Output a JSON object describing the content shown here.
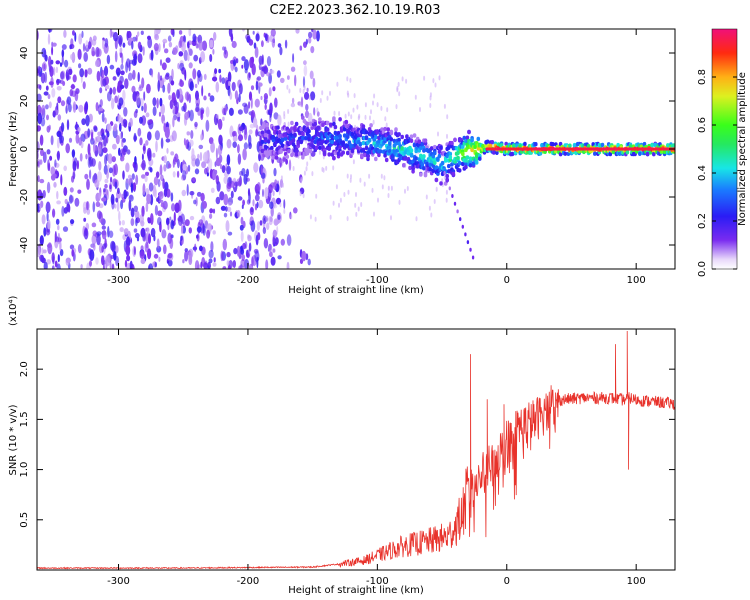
{
  "title": "C2E2.2023.362.10.19.R03",
  "chart_data": [
    {
      "type": "heatmap",
      "name": "spectrogram",
      "xlabel": "Height of straight line (km)",
      "ylabel": "Frequency (Hz)",
      "xlim": [
        -363,
        130
      ],
      "ylim": [
        -50,
        50
      ],
      "xticks": [
        -300,
        -200,
        -100,
        0,
        100
      ],
      "yticks": [
        -40,
        -20,
        0,
        20,
        40
      ],
      "colorbar": {
        "label": "Normalized spectral amplitude",
        "range": [
          0,
          1
        ],
        "ticks": [
          0.0,
          0.2,
          0.4,
          0.6,
          0.8
        ],
        "tick_labels": [
          "0.0",
          "0.2",
          "0.4",
          "0.6",
          "0.8"
        ]
      },
      "ridge": {
        "description_points_x": [
          -190,
          -150,
          -120,
          -100,
          -80,
          -60,
          -50,
          -40,
          -30,
          -20,
          -15,
          0,
          50,
          100,
          130
        ],
        "frequency_hz": [
          3,
          5,
          4,
          2,
          0,
          -4,
          -7,
          -3,
          -1,
          0,
          1,
          0,
          0,
          0,
          0
        ],
        "amplitude": [
          0.2,
          0.25,
          0.35,
          0.4,
          0.45,
          0.45,
          0.4,
          0.55,
          0.75,
          0.85,
          0.9,
          0.95,
          0.95,
          0.95,
          0.95
        ]
      },
      "noise_region_x": [
        -363,
        -175
      ]
    },
    {
      "type": "line",
      "name": "snr",
      "xlabel": "Height of straight line (km)",
      "ylabel": "SNR (10 * v/v)",
      "y_multiplier": "(x10⁴)",
      "xlim": [
        -363,
        130
      ],
      "ylim": [
        0,
        2.4
      ],
      "xticks": [
        -300,
        -200,
        -100,
        0,
        100
      ],
      "yticks": [
        0.5,
        1.0,
        1.5,
        2.0
      ],
      "ytick_labels": [
        "0.5",
        "1.0",
        "1.5",
        "2.0"
      ],
      "color": "#e8322b",
      "envelope": {
        "x": [
          -363,
          -250,
          -150,
          -130,
          -110,
          -100,
          -80,
          -60,
          -45,
          -35,
          -30,
          -20,
          -10,
          0,
          10,
          20,
          30,
          40,
          60,
          80,
          90,
          95,
          100,
          130
        ],
        "y": [
          0.02,
          0.02,
          0.03,
          0.06,
          0.1,
          0.15,
          0.25,
          0.3,
          0.35,
          0.55,
          0.8,
          0.95,
          1.1,
          1.3,
          1.45,
          1.5,
          1.6,
          1.7,
          1.72,
          1.72,
          1.7,
          1.72,
          1.7,
          1.66
        ]
      },
      "spikes": [
        {
          "x": -28,
          "y": 2.15
        },
        {
          "x": -15,
          "y": 1.7
        },
        {
          "x": -2,
          "y": 1.65
        },
        {
          "x": 84,
          "y": 2.25
        },
        {
          "x": 93,
          "y": 2.38
        },
        {
          "x": 94,
          "y": 1.0
        }
      ]
    }
  ]
}
